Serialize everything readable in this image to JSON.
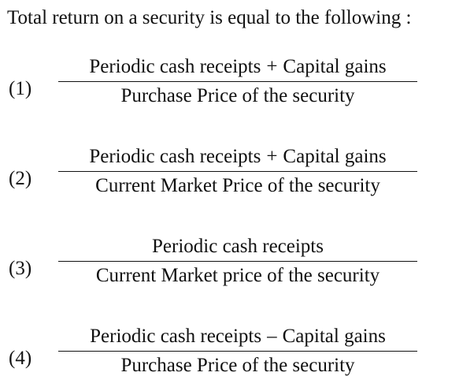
{
  "question": "Total return on a security is equal to the following :",
  "options": [
    {
      "number": "(1)",
      "numerator": {
        "left": "Periodic cash receipts",
        "operator": "+",
        "right": "Capital gains"
      },
      "denominator": "Purchase Price of the security"
    },
    {
      "number": "(2)",
      "numerator": {
        "left": "Periodic cash receipts",
        "operator": "+",
        "right": "Capital gains"
      },
      "denominator": "Current Market Price of the security"
    },
    {
      "number": "(3)",
      "numerator": {
        "left": "Periodic cash receipts",
        "operator": "",
        "right": ""
      },
      "denominator": "Current Market price of the security"
    },
    {
      "number": "(4)",
      "numerator": {
        "left": "Periodic cash receipts",
        "operator": "–",
        "right": "Capital gains"
      },
      "denominator": "Purchase Price of the security"
    }
  ]
}
